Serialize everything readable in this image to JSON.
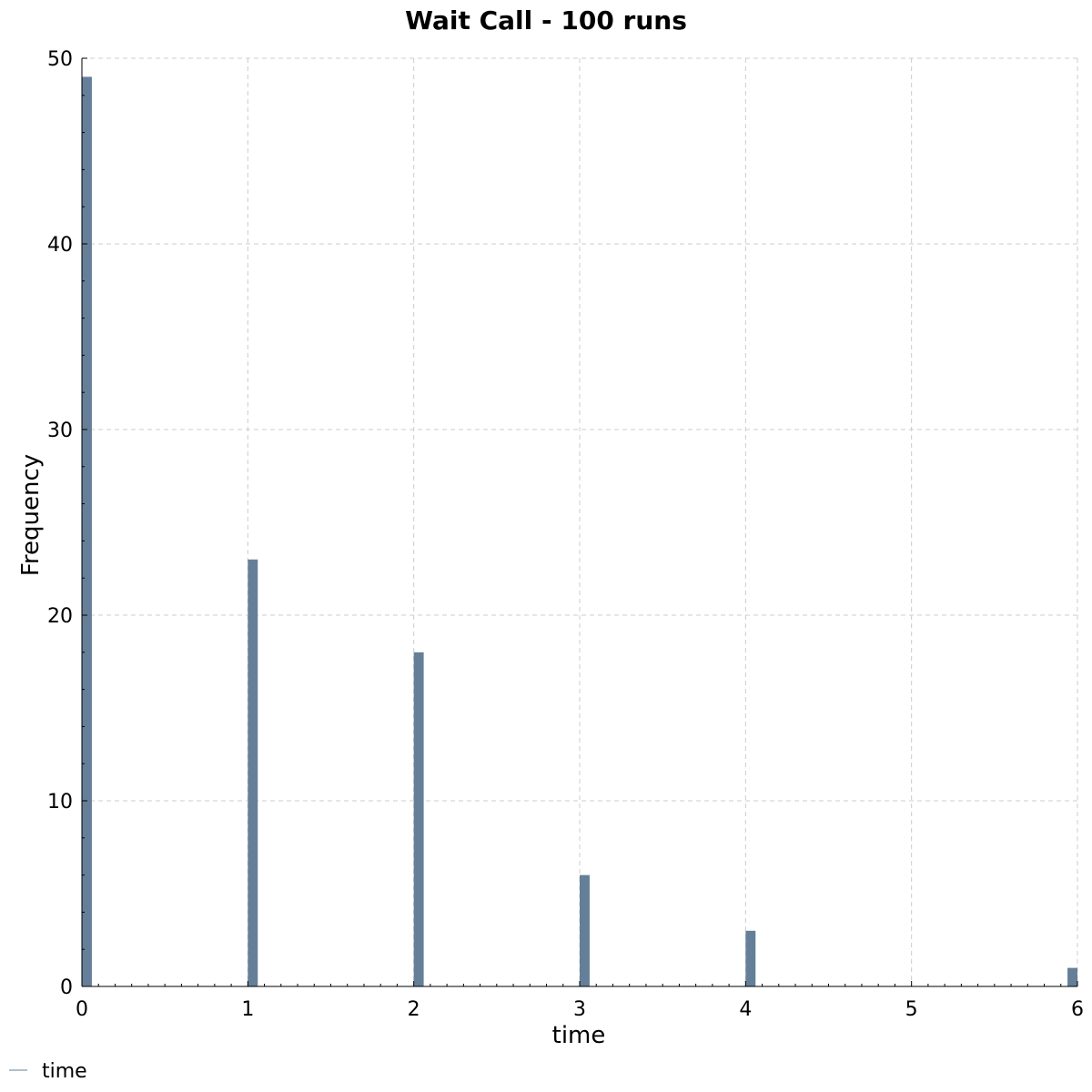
{
  "chart_data": {
    "type": "bar",
    "title": "Wait Call - 100 runs",
    "xlabel": "time",
    "ylabel": "Frequency",
    "x": [
      0,
      1,
      2,
      3,
      4,
      6
    ],
    "values": [
      49,
      23,
      18,
      6,
      3,
      1
    ],
    "xlim": [
      0,
      6
    ],
    "ylim": [
      0,
      50
    ],
    "xticks": [
      "0",
      "1",
      "2",
      "3",
      "4",
      "5",
      "6"
    ],
    "yticks": [
      "0",
      "10",
      "20",
      "30",
      "40",
      "50"
    ],
    "grid": true,
    "legend": {
      "placement": "bottom-left",
      "entries": [
        "time"
      ]
    },
    "colors": {
      "bar": "#667f99",
      "grid": "#cccccc",
      "axis": "#000000"
    }
  }
}
